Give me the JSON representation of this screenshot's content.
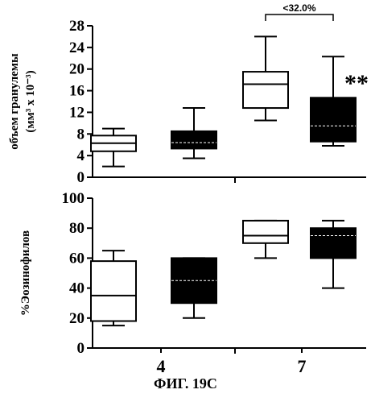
{
  "figure": {
    "caption": "ФИГ. 19С"
  },
  "chart_data": [
    {
      "type": "box",
      "ylabel": [
        "объем гранулемы",
        "(мм³ x 10⁻³)"
      ],
      "ylim": [
        0,
        28
      ],
      "yticks": [
        0,
        4,
        8,
        12,
        16,
        20,
        24,
        28
      ],
      "categories": [
        "4",
        "7"
      ],
      "groups": [
        {
          "category": "4",
          "fill": "#ffffff",
          "min": 2,
          "q1": 4.8,
          "median": 6.3,
          "q3": 7.7,
          "max": 9
        },
        {
          "category": "4",
          "fill": "#000000",
          "min": 3.5,
          "q1": 5.3,
          "median": 6.4,
          "q3": 8.5,
          "max": 12.8
        },
        {
          "category": "7",
          "fill": "#ffffff",
          "min": 10.5,
          "q1": 12.8,
          "median": 17.2,
          "q3": 19.5,
          "max": 26
        },
        {
          "category": "7",
          "fill": "#000000",
          "min": 5.8,
          "q1": 6.6,
          "median": 9.5,
          "q3": 14.7,
          "max": 22.3
        }
      ],
      "annotations": {
        "bracket_label": "<32.0%",
        "significance": "**"
      }
    },
    {
      "type": "box",
      "ylabel": [
        "%Эозинофилов"
      ],
      "ylim": [
        0,
        100
      ],
      "yticks": [
        0,
        20,
        40,
        60,
        80,
        100
      ],
      "categories": [
        "4",
        "7"
      ],
      "groups": [
        {
          "category": "4",
          "fill": "#ffffff",
          "min": 15,
          "q1": 18,
          "median": 35,
          "q3": 58,
          "max": 65
        },
        {
          "category": "4",
          "fill": "#000000",
          "min": 20,
          "q1": 30,
          "median": 45,
          "q3": 60,
          "max": 60
        },
        {
          "category": "7",
          "fill": "#ffffff",
          "min": 60,
          "q1": 70,
          "median": 75,
          "q3": 85,
          "max": 85
        },
        {
          "category": "7",
          "fill": "#000000",
          "min": 40,
          "q1": 60,
          "median": 75,
          "q3": 80,
          "max": 85
        }
      ]
    }
  ]
}
